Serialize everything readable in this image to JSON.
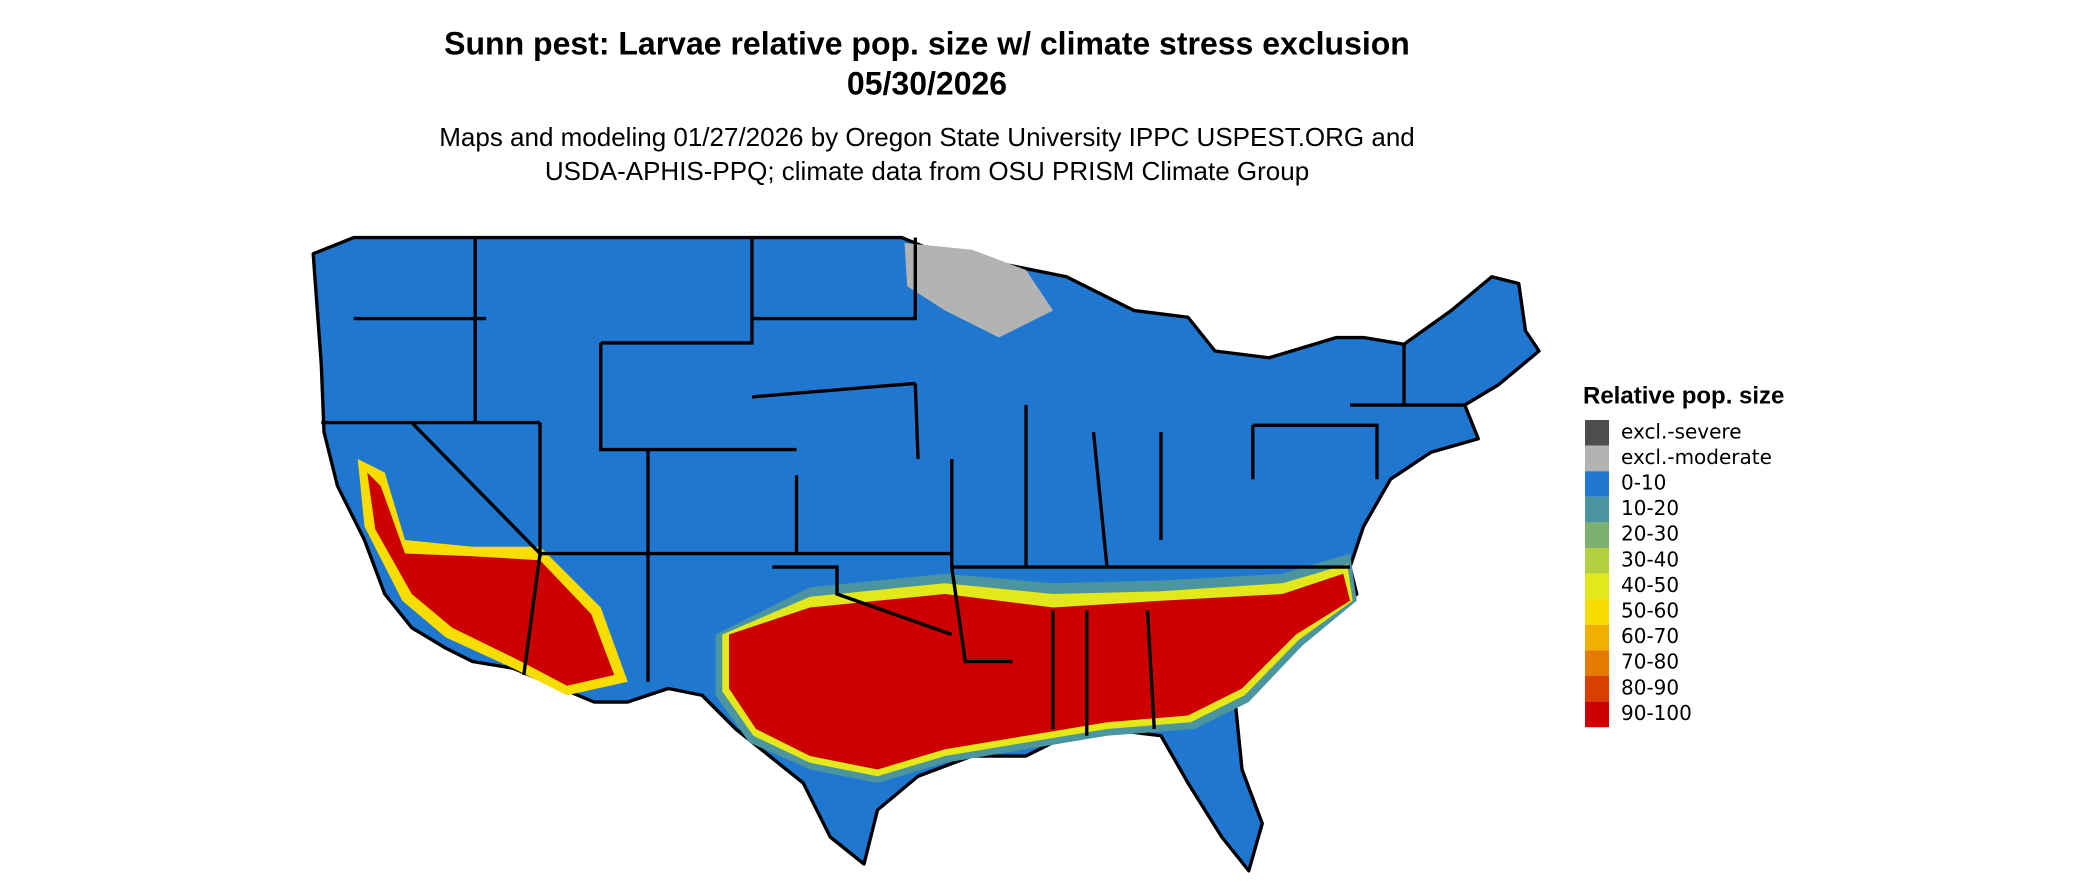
{
  "header": {
    "title": [
      "Sunn pest: Larvae relative pop. size w/ climate stress exclusion",
      "05/30/2026"
    ],
    "subtitle": [
      "Maps and modeling 01/27/2026 by Oregon State University IPPC USPEST.ORG and",
      "USDA-APHIS-PPQ; climate data from OSU PRISM Climate Group"
    ]
  },
  "legend": {
    "title": "Relative pop. size",
    "items": [
      {
        "label": "excl.-severe",
        "color": "#4d4d4d"
      },
      {
        "label": "excl.-moderate",
        "color": "#b3b3b3"
      },
      {
        "label": "0-10",
        "color": "#1f77d0"
      },
      {
        "label": "10-20",
        "color": "#4a95a0"
      },
      {
        "label": "20-30",
        "color": "#7eb070"
      },
      {
        "label": "30-40",
        "color": "#b4d040"
      },
      {
        "label": "40-50",
        "color": "#e2e81a"
      },
      {
        "label": "50-60",
        "color": "#f7de00"
      },
      {
        "label": "60-70",
        "color": "#f0b000"
      },
      {
        "label": "70-80",
        "color": "#e67a00"
      },
      {
        "label": "80-90",
        "color": "#d84000"
      },
      {
        "label": "90-100",
        "color": "#cc0000"
      }
    ]
  }
}
